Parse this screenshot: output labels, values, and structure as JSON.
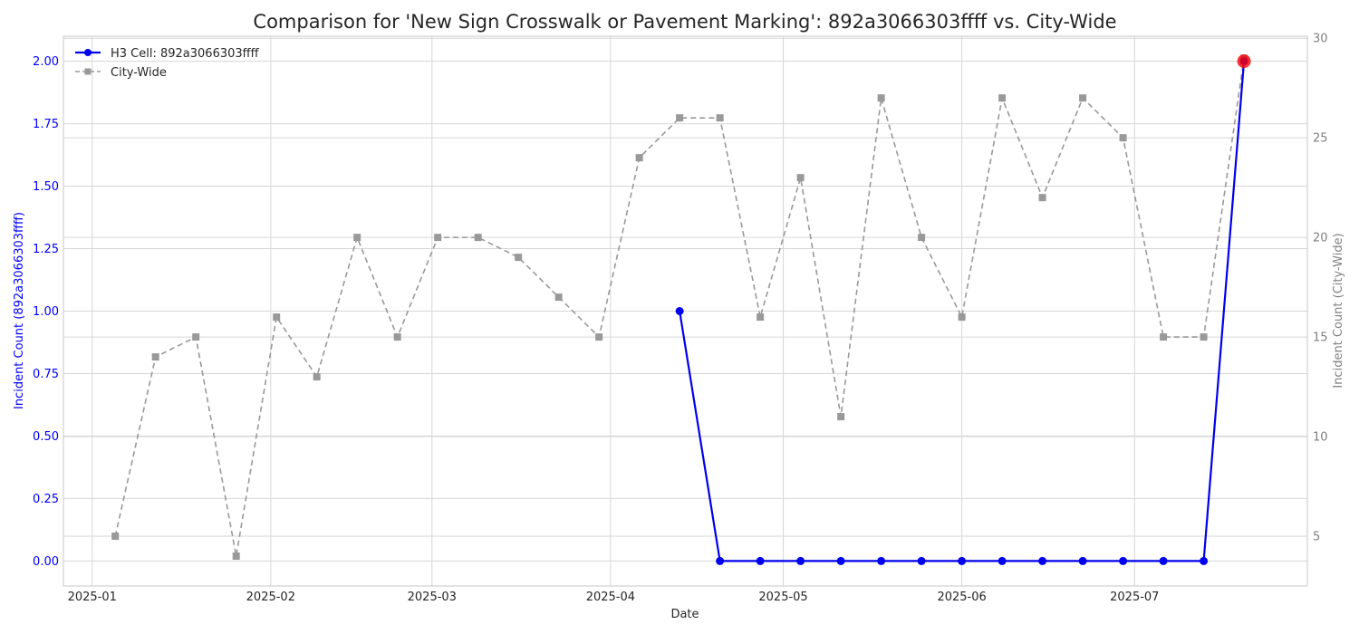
{
  "chart_data": {
    "type": "line",
    "title": "Comparison for 'New Sign  Crosswalk or Pavement Marking': 892a3066303ffff vs. City-Wide",
    "xlabel": "Date",
    "ylabel_left": "Incident Count (892a3066303ffff)",
    "ylabel_right": "Incident Count (City-Wide)",
    "x_ticks": [
      "2025-01",
      "2025-02",
      "2025-03",
      "2025-04",
      "2025-05",
      "2025-06",
      "2025-07"
    ],
    "y_left_ticks": [
      "0.00",
      "0.25",
      "0.50",
      "0.75",
      "1.00",
      "1.25",
      "1.50",
      "1.75",
      "2.00"
    ],
    "y_right_ticks": [
      "5",
      "10",
      "15",
      "20",
      "25",
      "30"
    ],
    "ylim_left": [
      -0.1,
      2.1
    ],
    "ylim_right": [
      2.5,
      30.1
    ],
    "x_range": [
      "2024-12-27",
      "2025-07-31"
    ],
    "grid": true,
    "legend_position": "top-left",
    "colors": {
      "h3": "#0000ee",
      "city": "#999999",
      "highlight": "#ff0000"
    },
    "series": [
      {
        "name": "H3 Cell: 892a3066303ffff",
        "axis": "left",
        "style": "solid-circle",
        "x": [
          "2025-04-13",
          "2025-04-20",
          "2025-04-27",
          "2025-05-04",
          "2025-05-11",
          "2025-05-18",
          "2025-05-25",
          "2025-06-01",
          "2025-06-08",
          "2025-06-15",
          "2025-06-22",
          "2025-06-29",
          "2025-07-06",
          "2025-07-13",
          "2025-07-20"
        ],
        "values": [
          1,
          0,
          0,
          0,
          0,
          0,
          0,
          0,
          0,
          0,
          0,
          0,
          0,
          0,
          2
        ]
      },
      {
        "name": "City-Wide",
        "axis": "right",
        "style": "dashed-square",
        "x": [
          "2025-01-05",
          "2025-01-12",
          "2025-01-19",
          "2025-01-26",
          "2025-02-02",
          "2025-02-09",
          "2025-02-16",
          "2025-02-23",
          "2025-03-02",
          "2025-03-09",
          "2025-03-16",
          "2025-03-23",
          "2025-03-30",
          "2025-04-06",
          "2025-04-13",
          "2025-04-20",
          "2025-04-27",
          "2025-05-04",
          "2025-05-11",
          "2025-05-18",
          "2025-05-25",
          "2025-06-01",
          "2025-06-08",
          "2025-06-15",
          "2025-06-22",
          "2025-06-29",
          "2025-07-06",
          "2025-07-13",
          "2025-07-20"
        ],
        "values": [
          5,
          14,
          15,
          4,
          16,
          13,
          20,
          15,
          20,
          20,
          19,
          17,
          15,
          24,
          26,
          26,
          16,
          23,
          11,
          27,
          20,
          16,
          27,
          22,
          27,
          25,
          15,
          15,
          29
        ]
      }
    ],
    "highlight": {
      "series": "H3 Cell: 892a3066303ffff",
      "x": "2025-07-20",
      "value": 2
    }
  }
}
